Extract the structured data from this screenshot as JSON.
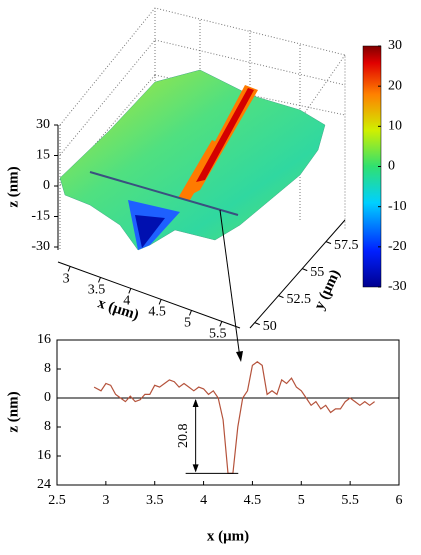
{
  "chart_data": [
    {
      "type": "surface",
      "zlabel": "z (nm)",
      "xlabel": "x (μm)",
      "ylabel": "y (μm)",
      "xlim": [
        2.8,
        5.8
      ],
      "xticks": [
        3,
        3.5,
        4,
        4.5,
        5,
        5.5
      ],
      "ylim": [
        49.5,
        59.5
      ],
      "yticks": [
        50,
        52.5,
        55,
        57.5
      ],
      "zlim": [
        -30,
        30
      ],
      "zticks": [
        -30,
        -15,
        0,
        15,
        30
      ],
      "clim": [
        -30,
        30
      ],
      "cticks": [
        -30,
        -20,
        -10,
        0,
        10,
        20,
        30
      ]
    },
    {
      "type": "line",
      "xlabel": "x (μm)",
      "ylabel": "z (nm)",
      "color": "#b5533c",
      "xlim": [
        2.5,
        6
      ],
      "xticks": [
        2.5,
        3,
        3.5,
        4,
        4.5,
        5,
        5.5,
        6
      ],
      "ylim": [
        -24,
        16
      ],
      "yticks": [
        {
          "value": -24,
          "label": "24"
        },
        {
          "value": -16,
          "label": "16"
        },
        {
          "value": -8,
          "label": "8"
        },
        0,
        8,
        16
      ],
      "depth": 20.8,
      "x": [
        2.88,
        2.95,
        3.0,
        3.05,
        3.1,
        3.15,
        3.2,
        3.25,
        3.3,
        3.35,
        3.4,
        3.45,
        3.5,
        3.55,
        3.6,
        3.65,
        3.7,
        3.75,
        3.8,
        3.85,
        3.9,
        3.95,
        4.0,
        4.05,
        4.1,
        4.15,
        4.2,
        4.25,
        4.3,
        4.35,
        4.4,
        4.45,
        4.5,
        4.55,
        4.6,
        4.65,
        4.7,
        4.75,
        4.8,
        4.85,
        4.9,
        4.95,
        5.0,
        5.05,
        5.1,
        5.15,
        5.2,
        5.25,
        5.3,
        5.35,
        5.4,
        5.45,
        5.5,
        5.55,
        5.6,
        5.65,
        5.7,
        5.75
      ],
      "values": [
        3,
        2,
        4,
        3.5,
        1,
        0,
        -1,
        0.5,
        -1,
        -0.5,
        1,
        1,
        3.5,
        3,
        4,
        5,
        4.5,
        3,
        4,
        3,
        2,
        3,
        2.5,
        1,
        2,
        0,
        -6,
        -20.8,
        -20.8,
        -8,
        0,
        2,
        9,
        10,
        9,
        1,
        2,
        1,
        5,
        4,
        5.5,
        3,
        2,
        0,
        -2,
        -1,
        -3,
        -2,
        -4,
        -3,
        -3,
        -1,
        0,
        -1,
        -2,
        -1,
        -2,
        -1
      ]
    }
  ]
}
